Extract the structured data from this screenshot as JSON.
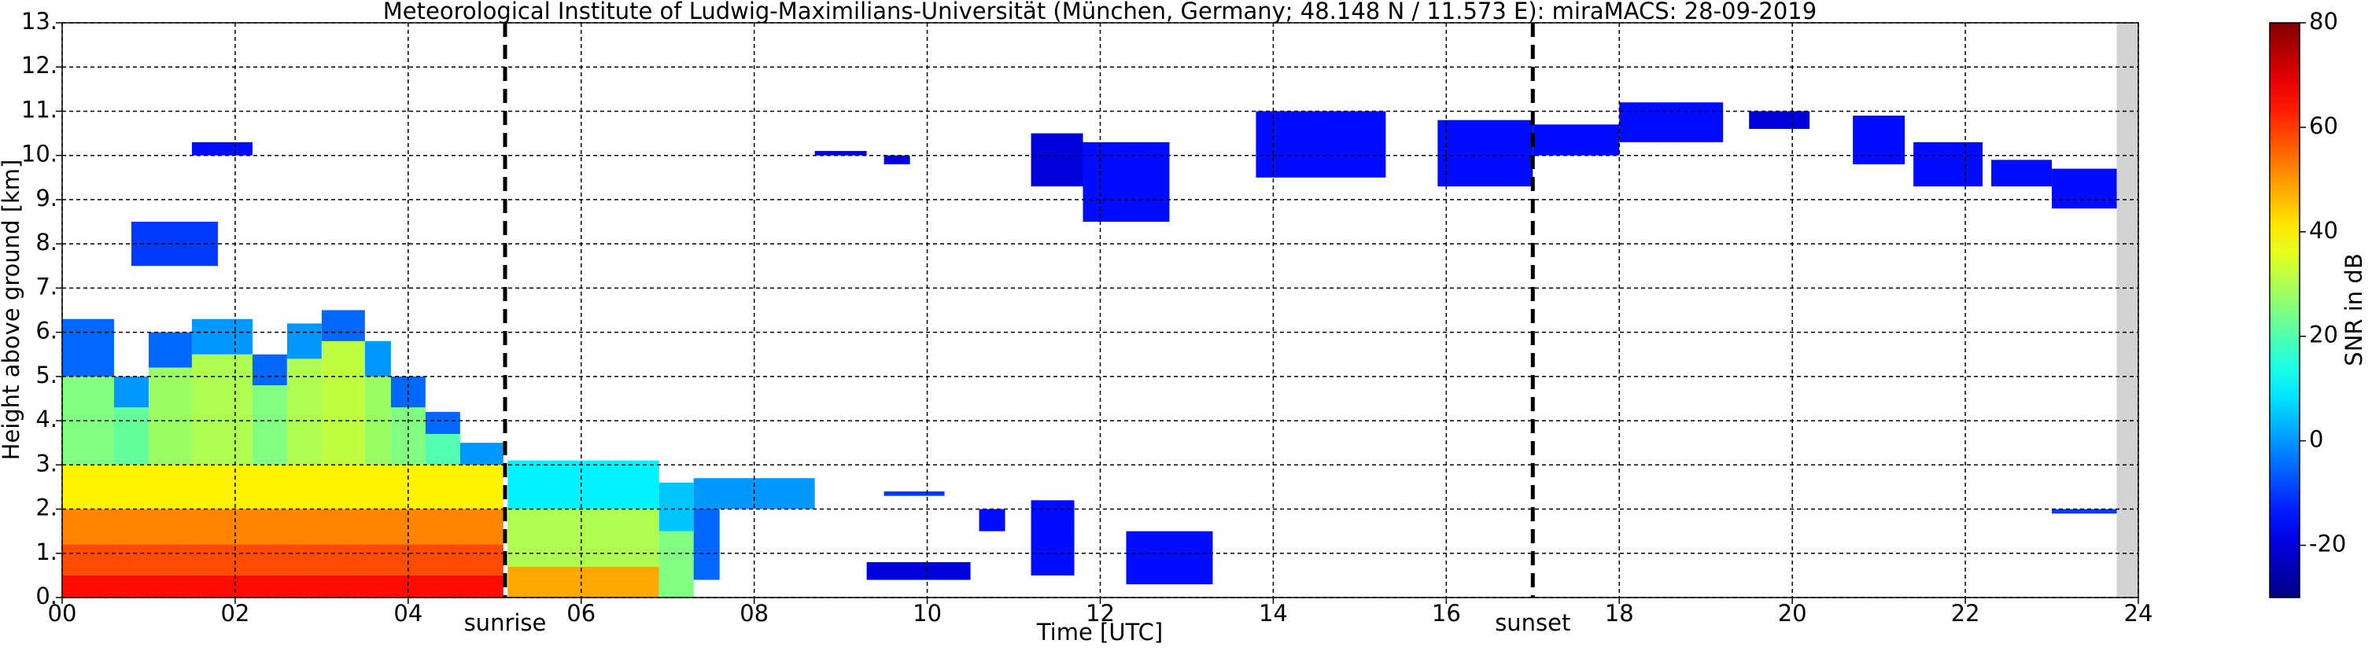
{
  "chart_data": {
    "type": "heatmap",
    "title": "Meteorological Institute of Ludwig-Maximilians-Universität (München, Germany; 48.148 N / 11.573 E):    miraMACS: 28-09-2019",
    "xlabel": "Time [UTC]",
    "ylabel": "Height above ground [km]",
    "colorbar_label": "SNR in dB",
    "xlim": [
      0,
      24
    ],
    "ylim": [
      0,
      13
    ],
    "clim": [
      -30,
      80
    ],
    "xticks": [
      {
        "value": 0,
        "label": "00"
      },
      {
        "value": 2,
        "label": "02"
      },
      {
        "value": 4,
        "label": "04"
      },
      {
        "value": 6,
        "label": "06"
      },
      {
        "value": 8,
        "label": "08"
      },
      10,
      12,
      14,
      16,
      18,
      20,
      22,
      24
    ],
    "yticks": [
      {
        "value": 0,
        "label": "0."
      },
      {
        "value": 1,
        "label": "1."
      },
      {
        "value": 2,
        "label": "2."
      },
      {
        "value": 3,
        "label": "3."
      },
      {
        "value": 4,
        "label": "4."
      },
      {
        "value": 5,
        "label": "5."
      },
      {
        "value": 6,
        "label": "6."
      },
      {
        "value": 7,
        "label": "7."
      },
      {
        "value": 8,
        "label": "8."
      },
      {
        "value": 9,
        "label": "9."
      },
      {
        "value": 10,
        "label": "10."
      },
      {
        "value": 11,
        "label": "11."
      },
      {
        "value": 12,
        "label": "12."
      },
      {
        "value": 13,
        "label": "13."
      }
    ],
    "cticks": [
      -20,
      0,
      20,
      40,
      60,
      80
    ],
    "grid": true,
    "no_data": [
      23.75,
      24
    ],
    "annotations": [
      {
        "text": "sunrise",
        "x": 5.12
      },
      {
        "text": "sunset",
        "x": 17.0
      }
    ],
    "cells": [
      [
        0,
        5.1,
        0,
        0.5,
        65
      ],
      [
        0,
        5.1,
        0.5,
        1.2,
        58
      ],
      [
        0,
        5.1,
        1.2,
        2.0,
        52
      ],
      [
        0,
        5.1,
        2.0,
        3.0,
        40
      ],
      [
        0,
        0.6,
        3.0,
        5.0,
        25
      ],
      [
        0,
        0.6,
        5.0,
        6.3,
        -5
      ],
      [
        0.6,
        1.0,
        3.0,
        4.3,
        22
      ],
      [
        0.6,
        1.0,
        4.3,
        5.0,
        0
      ],
      [
        1.0,
        1.5,
        3.0,
        5.2,
        28
      ],
      [
        1.0,
        1.5,
        5.2,
        6.0,
        -5
      ],
      [
        1.5,
        2.2,
        3.0,
        5.5,
        30
      ],
      [
        1.5,
        2.2,
        5.5,
        6.3,
        0
      ],
      [
        2.2,
        2.6,
        3.0,
        4.8,
        25
      ],
      [
        2.2,
        2.6,
        4.8,
        5.5,
        -5
      ],
      [
        2.6,
        3.0,
        3.0,
        5.4,
        30
      ],
      [
        2.6,
        3.0,
        5.4,
        6.2,
        0
      ],
      [
        3.0,
        3.5,
        3.0,
        5.8,
        32
      ],
      [
        3.0,
        3.5,
        5.8,
        6.5,
        -5
      ],
      [
        3.5,
        3.8,
        3.0,
        5.0,
        28
      ],
      [
        3.5,
        3.8,
        5.0,
        5.8,
        0
      ],
      [
        3.8,
        4.2,
        3.0,
        4.3,
        25
      ],
      [
        3.8,
        4.2,
        4.3,
        5.0,
        -5
      ],
      [
        4.2,
        4.6,
        3.0,
        3.7,
        20
      ],
      [
        4.2,
        4.6,
        3.7,
        4.2,
        -5
      ],
      [
        4.6,
        5.1,
        3.0,
        3.5,
        0
      ],
      [
        5.15,
        6.9,
        0,
        0.7,
        48
      ],
      [
        5.15,
        6.9,
        0.7,
        2.0,
        30
      ],
      [
        5.15,
        6.9,
        2.0,
        3.1,
        10
      ],
      [
        6.9,
        7.3,
        0,
        1.5,
        25
      ],
      [
        6.9,
        7.3,
        1.5,
        2.6,
        5
      ],
      [
        7.3,
        8.7,
        2.0,
        2.7,
        0
      ],
      [
        7.3,
        7.6,
        0.4,
        2.0,
        -5
      ],
      [
        9.5,
        10.2,
        2.3,
        2.4,
        -10
      ],
      [
        1.5,
        2.2,
        10.0,
        10.3,
        -15
      ],
      [
        0.8,
        1.8,
        7.5,
        8.5,
        -10
      ],
      [
        8.7,
        9.3,
        10.0,
        10.1,
        -20
      ],
      [
        9.5,
        9.8,
        9.8,
        10.0,
        -20
      ],
      [
        11.2,
        11.8,
        9.3,
        10.5,
        -20
      ],
      [
        11.8,
        12.8,
        8.5,
        10.3,
        -15
      ],
      [
        13.8,
        15.3,
        9.5,
        11.0,
        -15
      ],
      [
        15.9,
        17.0,
        9.3,
        10.8,
        -15
      ],
      [
        17.0,
        18.0,
        10.0,
        10.7,
        -15
      ],
      [
        18.0,
        19.2,
        10.3,
        11.2,
        -15
      ],
      [
        19.5,
        20.2,
        10.6,
        11.0,
        -20
      ],
      [
        20.7,
        21.3,
        9.8,
        10.9,
        -15
      ],
      [
        21.4,
        22.2,
        9.3,
        10.3,
        -15
      ],
      [
        22.3,
        23.0,
        9.3,
        9.9,
        -15
      ],
      [
        23.0,
        23.75,
        8.8,
        9.7,
        -15
      ],
      [
        23.0,
        23.75,
        1.9,
        2.0,
        -10
      ],
      [
        10.6,
        10.9,
        1.5,
        2.0,
        -15
      ],
      [
        11.2,
        11.7,
        0.5,
        2.2,
        -15
      ],
      [
        12.3,
        13.3,
        0.3,
        1.5,
        -15
      ],
      [
        9.3,
        10.5,
        0.4,
        0.8,
        -20
      ]
    ]
  }
}
